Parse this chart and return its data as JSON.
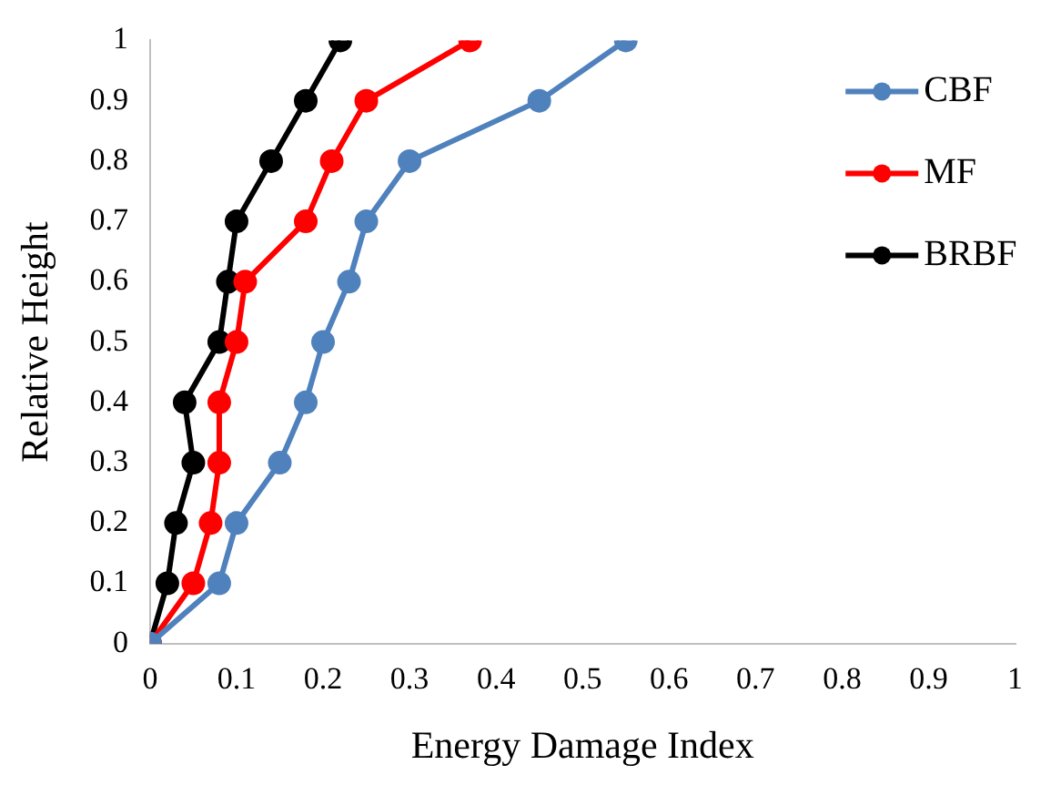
{
  "chart_data": {
    "type": "line",
    "xlabel": "Energy Damage Index",
    "ylabel": "Relative Height",
    "xlim": [
      0,
      1
    ],
    "xticks": [
      0,
      0.1,
      0.2,
      0.3,
      0.4,
      0.5,
      0.6,
      0.7,
      0.8,
      0.9,
      1
    ],
    "ylim": [
      0,
      1
    ],
    "yticks": [
      0,
      0.1,
      0.2,
      0.3,
      0.4,
      0.5,
      0.6,
      0.7,
      0.8,
      0.9,
      1
    ],
    "grid": false,
    "legend": "top right",
    "marker": "circle",
    "line_style": "solid",
    "series": [
      {
        "name": "CBF",
        "color": "#4f81bd",
        "x": [
          0,
          0.08,
          0.1,
          0.15,
          0.18,
          0.2,
          0.23,
          0.25,
          0.3,
          0.45,
          0.55
        ],
        "values": [
          0,
          0.1,
          0.2,
          0.3,
          0.4,
          0.5,
          0.6,
          0.7,
          0.8,
          0.9,
          1
        ]
      },
      {
        "name": "MF",
        "color": "#ff0000",
        "x": [
          0,
          0.05,
          0.07,
          0.08,
          0.08,
          0.1,
          0.11,
          0.18,
          0.21,
          0.25,
          0.37
        ],
        "values": [
          0,
          0.1,
          0.2,
          0.3,
          0.4,
          0.5,
          0.6,
          0.7,
          0.8,
          0.9,
          1
        ]
      },
      {
        "name": "BRBF",
        "color": "#000000",
        "x": [
          0,
          0.02,
          0.03,
          0.05,
          0.04,
          0.08,
          0.09,
          0.1,
          0.14,
          0.18,
          0.22
        ],
        "values": [
          0,
          0.1,
          0.2,
          0.3,
          0.4,
          0.5,
          0.6,
          0.7,
          0.8,
          0.9,
          1
        ]
      }
    ]
  }
}
